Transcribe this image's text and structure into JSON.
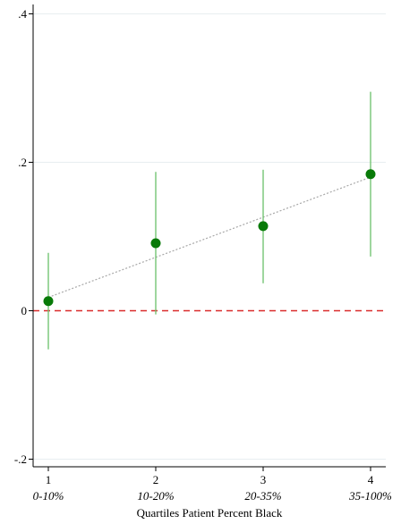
{
  "chart_data": {
    "type": "scatter",
    "title": "",
    "xlabel": "Quartiles Patient Percent Black",
    "ylabel": "",
    "x": [
      1,
      2,
      3,
      4
    ],
    "x_tick_labels": [
      "1",
      "2",
      "3",
      "4"
    ],
    "category_labels": [
      "0-10%",
      "10-20%",
      "20-35%",
      "35-100%"
    ],
    "xlim": [
      0.85,
      4.15
    ],
    "ylim": [
      -0.21,
      0.4
    ],
    "y_ticks": [
      -0.2,
      0,
      0.2,
      0.4
    ],
    "y_tick_labels": [
      "-.2",
      "0",
      ".2",
      ".4"
    ],
    "grid": true,
    "series": [
      {
        "values": [
          0.013,
          0.091,
          0.114,
          0.184
        ],
        "ci_low": [
          -0.052,
          -0.005,
          0.037,
          0.073
        ],
        "ci_high": [
          0.078,
          0.187,
          0.19,
          0.295
        ]
      }
    ],
    "trend_line": {
      "start": [
        1,
        0.018
      ],
      "end": [
        4,
        0.18
      ]
    },
    "reference_line": {
      "y": 0
    },
    "colors": {
      "point": "#087a08",
      "ci": "#6abf6a",
      "trend": "#a8a8a8",
      "reference": "#d92b2b",
      "grid": "#e8eef0"
    }
  }
}
